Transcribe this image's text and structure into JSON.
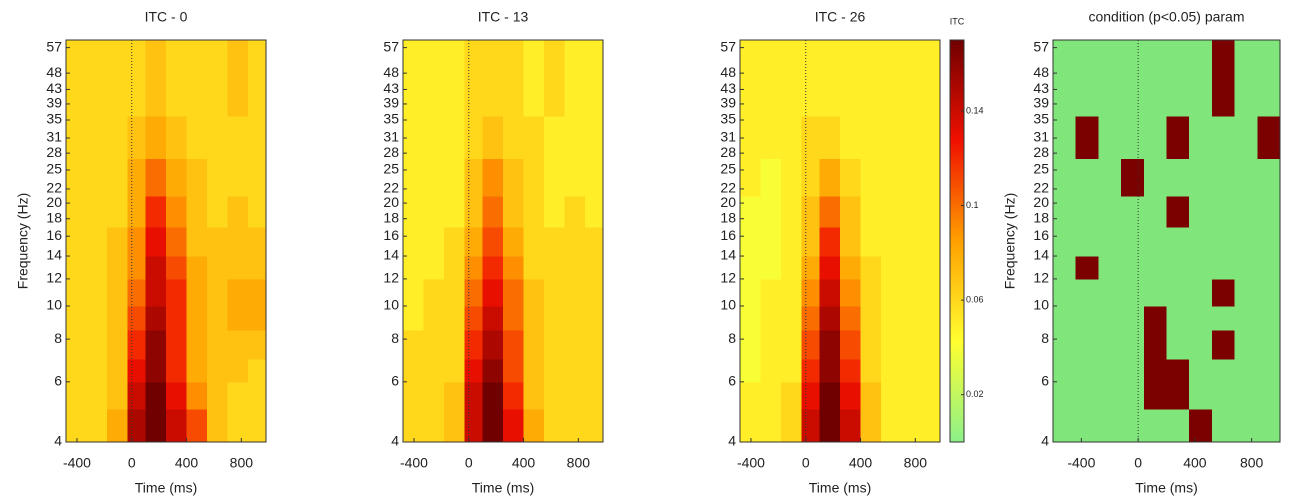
{
  "chart_data": [
    {
      "type": "heatmap",
      "title": "ITC - 0",
      "xlabel": "Time (ms)",
      "ylabel": "Frequency (Hz)",
      "log_y": true,
      "xlim": [
        -480,
        980
      ],
      "ylim": [
        4,
        60
      ],
      "xticks": [
        -400,
        0,
        400,
        800
      ],
      "yticks": [
        4,
        6,
        8,
        10,
        12,
        14,
        16,
        18,
        20,
        22,
        25,
        28,
        31,
        35,
        39,
        43,
        48,
        57
      ],
      "vline": 0,
      "xbins": [
        -480,
        -330,
        -180,
        -30,
        100,
        250,
        400,
        550,
        700,
        850,
        980
      ],
      "ybins": [
        4,
        5,
        6,
        7,
        8.5,
        10,
        12,
        14,
        17,
        21,
        27,
        36,
        60
      ],
      "clim": [
        0,
        0.17
      ],
      "colormap": [
        "#8cf08a",
        "#ffff30",
        "#ffa000",
        "#f01000",
        "#700000"
      ],
      "z": [
        [
          0.06,
          0.06,
          0.08,
          0.15,
          0.17,
          0.14,
          0.11,
          0.07,
          0.06,
          0.06
        ],
        [
          0.06,
          0.06,
          0.07,
          0.14,
          0.17,
          0.13,
          0.09,
          0.07,
          0.06,
          0.06
        ],
        [
          0.06,
          0.06,
          0.07,
          0.13,
          0.16,
          0.12,
          0.08,
          0.07,
          0.07,
          0.06
        ],
        [
          0.06,
          0.06,
          0.07,
          0.12,
          0.16,
          0.12,
          0.08,
          0.07,
          0.07,
          0.07
        ],
        [
          0.06,
          0.06,
          0.07,
          0.11,
          0.15,
          0.12,
          0.08,
          0.07,
          0.08,
          0.08
        ],
        [
          0.06,
          0.06,
          0.07,
          0.1,
          0.14,
          0.12,
          0.08,
          0.07,
          0.08,
          0.08
        ],
        [
          0.06,
          0.06,
          0.07,
          0.09,
          0.14,
          0.11,
          0.08,
          0.07,
          0.07,
          0.07
        ],
        [
          0.06,
          0.06,
          0.07,
          0.09,
          0.13,
          0.1,
          0.07,
          0.07,
          0.07,
          0.07
        ],
        [
          0.06,
          0.06,
          0.06,
          0.08,
          0.12,
          0.09,
          0.07,
          0.06,
          0.07,
          0.06
        ],
        [
          0.06,
          0.06,
          0.06,
          0.08,
          0.1,
          0.08,
          0.07,
          0.06,
          0.06,
          0.06
        ],
        [
          0.06,
          0.06,
          0.06,
          0.07,
          0.08,
          0.07,
          0.06,
          0.06,
          0.06,
          0.06
        ],
        [
          0.06,
          0.06,
          0.06,
          0.06,
          0.07,
          0.06,
          0.06,
          0.06,
          0.07,
          0.06
        ]
      ]
    },
    {
      "type": "heatmap",
      "title": "ITC - 13",
      "xlabel": "Time (ms)",
      "log_y": true,
      "xlim": [
        -480,
        980
      ],
      "ylim": [
        4,
        60
      ],
      "xticks": [
        -400,
        0,
        400,
        800
      ],
      "yticks": [
        4,
        6,
        8,
        10,
        12,
        14,
        16,
        18,
        20,
        22,
        25,
        28,
        31,
        35,
        39,
        43,
        48,
        57
      ],
      "vline": 0,
      "xbins": [
        -480,
        -330,
        -180,
        -30,
        100,
        250,
        400,
        550,
        700,
        850,
        980
      ],
      "ybins": [
        4,
        5,
        6,
        7,
        8.5,
        10,
        12,
        14,
        17,
        21,
        27,
        36,
        60
      ],
      "clim": [
        0,
        0.17
      ],
      "colormap": [
        "#8cf08a",
        "#ffff30",
        "#ffa000",
        "#f01000",
        "#700000"
      ],
      "z": [
        [
          0.06,
          0.06,
          0.07,
          0.14,
          0.17,
          0.13,
          0.08,
          0.06,
          0.06,
          0.06
        ],
        [
          0.06,
          0.06,
          0.07,
          0.14,
          0.17,
          0.12,
          0.07,
          0.06,
          0.06,
          0.06
        ],
        [
          0.06,
          0.06,
          0.06,
          0.13,
          0.16,
          0.11,
          0.07,
          0.06,
          0.06,
          0.06
        ],
        [
          0.06,
          0.06,
          0.06,
          0.12,
          0.15,
          0.11,
          0.07,
          0.06,
          0.06,
          0.06
        ],
        [
          0.05,
          0.06,
          0.06,
          0.11,
          0.14,
          0.1,
          0.07,
          0.06,
          0.06,
          0.06
        ],
        [
          0.05,
          0.06,
          0.06,
          0.1,
          0.13,
          0.1,
          0.07,
          0.06,
          0.06,
          0.06
        ],
        [
          0.05,
          0.05,
          0.06,
          0.09,
          0.12,
          0.09,
          0.06,
          0.06,
          0.06,
          0.06
        ],
        [
          0.05,
          0.05,
          0.06,
          0.08,
          0.11,
          0.08,
          0.06,
          0.06,
          0.06,
          0.06
        ],
        [
          0.05,
          0.05,
          0.05,
          0.07,
          0.1,
          0.07,
          0.06,
          0.05,
          0.06,
          0.05
        ],
        [
          0.05,
          0.05,
          0.05,
          0.07,
          0.09,
          0.07,
          0.06,
          0.05,
          0.05,
          0.05
        ],
        [
          0.05,
          0.05,
          0.05,
          0.06,
          0.07,
          0.06,
          0.06,
          0.05,
          0.05,
          0.05
        ],
        [
          0.05,
          0.05,
          0.05,
          0.06,
          0.06,
          0.06,
          0.05,
          0.06,
          0.05,
          0.05
        ]
      ]
    },
    {
      "type": "heatmap",
      "title": "ITC - 26",
      "xlabel": "Time (ms)",
      "log_y": true,
      "xlim": [
        -480,
        980
      ],
      "ylim": [
        4,
        60
      ],
      "xticks": [
        -400,
        0,
        400,
        800
      ],
      "yticks": [
        4,
        6,
        8,
        10,
        12,
        14,
        16,
        18,
        20,
        22,
        25,
        28,
        31,
        35,
        39,
        43,
        48,
        57
      ],
      "vline": 0,
      "xbins": [
        -480,
        -330,
        -180,
        -30,
        100,
        250,
        400,
        550,
        700,
        850,
        980
      ],
      "ybins": [
        4,
        5,
        6,
        7,
        8.5,
        10,
        12,
        14,
        17,
        21,
        27,
        36,
        60
      ],
      "clim": [
        0,
        0.17
      ],
      "colormap": [
        "#8cf08a",
        "#ffff30",
        "#ffa000",
        "#f01000",
        "#700000"
      ],
      "colorbar": {
        "label": "ITC",
        "ticks": [
          0.02,
          0.06,
          0.1,
          0.14
        ]
      },
      "z": [
        [
          0.05,
          0.05,
          0.06,
          0.14,
          0.17,
          0.14,
          0.07,
          0.05,
          0.05,
          0.05
        ],
        [
          0.05,
          0.05,
          0.06,
          0.13,
          0.17,
          0.13,
          0.07,
          0.05,
          0.05,
          0.05
        ],
        [
          0.04,
          0.05,
          0.05,
          0.12,
          0.16,
          0.12,
          0.06,
          0.05,
          0.05,
          0.05
        ],
        [
          0.04,
          0.05,
          0.05,
          0.11,
          0.16,
          0.11,
          0.06,
          0.05,
          0.05,
          0.05
        ],
        [
          0.04,
          0.05,
          0.05,
          0.1,
          0.15,
          0.1,
          0.06,
          0.05,
          0.05,
          0.05
        ],
        [
          0.04,
          0.05,
          0.05,
          0.09,
          0.14,
          0.09,
          0.06,
          0.05,
          0.05,
          0.05
        ],
        [
          0.04,
          0.04,
          0.05,
          0.08,
          0.13,
          0.08,
          0.06,
          0.05,
          0.05,
          0.05
        ],
        [
          0.04,
          0.04,
          0.05,
          0.07,
          0.12,
          0.07,
          0.05,
          0.05,
          0.05,
          0.05
        ],
        [
          0.04,
          0.04,
          0.05,
          0.07,
          0.1,
          0.07,
          0.05,
          0.05,
          0.05,
          0.05
        ],
        [
          0.05,
          0.04,
          0.05,
          0.06,
          0.08,
          0.06,
          0.05,
          0.05,
          0.05,
          0.05
        ],
        [
          0.05,
          0.05,
          0.05,
          0.06,
          0.06,
          0.05,
          0.05,
          0.05,
          0.05,
          0.05
        ],
        [
          0.05,
          0.05,
          0.05,
          0.05,
          0.05,
          0.05,
          0.05,
          0.05,
          0.05,
          0.05
        ]
      ]
    },
    {
      "type": "mask",
      "title": "condition (p<0.05) param",
      "xlabel": "Time (ms)",
      "ylabel": "Frequency (Hz)",
      "log_y": true,
      "xlim": [
        -600,
        1000
      ],
      "ylim": [
        4,
        60
      ],
      "xticks": [
        -400,
        0,
        400,
        800
      ],
      "yticks": [
        4,
        6,
        8,
        10,
        12,
        14,
        16,
        18,
        20,
        22,
        25,
        28,
        31,
        35,
        39,
        43,
        48,
        57
      ],
      "vline": 0,
      "xbins": [
        -600,
        -440,
        -280,
        -120,
        40,
        200,
        360,
        520,
        680,
        840,
        1000
      ],
      "ybins": [
        4,
        5,
        6,
        7,
        8.5,
        10,
        12,
        14,
        17,
        21,
        27,
        36,
        60
      ],
      "colors": [
        "#80e57a",
        "#7b0000"
      ],
      "z": [
        [
          0,
          0,
          0,
          0,
          0,
          0,
          1,
          0,
          0,
          0
        ],
        [
          0,
          0,
          0,
          0,
          1,
          1,
          0,
          0,
          0,
          0
        ],
        [
          0,
          0,
          0,
          0,
          1,
          1,
          0,
          0,
          0,
          0
        ],
        [
          0,
          0,
          0,
          0,
          1,
          0,
          0,
          1,
          0,
          0
        ],
        [
          0,
          0,
          0,
          0,
          1,
          0,
          0,
          0,
          0,
          0
        ],
        [
          0,
          0,
          0,
          0,
          0,
          0,
          0,
          1,
          0,
          0
        ],
        [
          0,
          1,
          0,
          0,
          0,
          0,
          0,
          0,
          0,
          0
        ],
        [
          0,
          0,
          0,
          0,
          0,
          0,
          0,
          0,
          0,
          0
        ],
        [
          0,
          0,
          0,
          0,
          0,
          1,
          0,
          0,
          0,
          0
        ],
        [
          0,
          0,
          0,
          1,
          0,
          0,
          0,
          0,
          0,
          0
        ],
        [
          0,
          1,
          0,
          0,
          0,
          1,
          0,
          0,
          0,
          1
        ],
        [
          0,
          0,
          0,
          0,
          0,
          0,
          0,
          1,
          0,
          0
        ]
      ]
    }
  ]
}
